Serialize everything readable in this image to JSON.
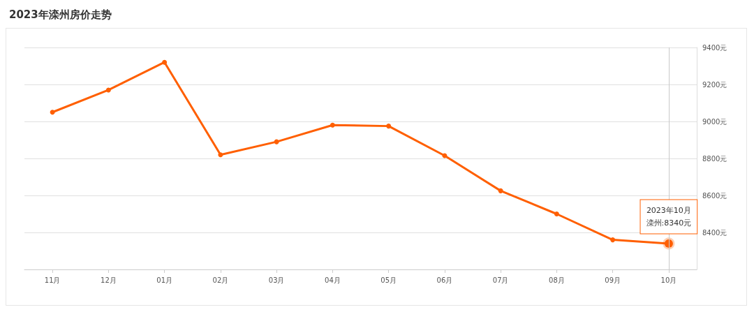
{
  "chart_data": {
    "type": "line",
    "title": "2023年滦州房价走势",
    "categories": [
      "11月",
      "12月",
      "01月",
      "02月",
      "03月",
      "04月",
      "05月",
      "06月",
      "07月",
      "08月",
      "09月",
      "10月"
    ],
    "values": [
      9050,
      9170,
      9320,
      8820,
      8890,
      8980,
      8975,
      8815,
      8625,
      8500,
      8360,
      8340
    ],
    "color": "#ff5f00",
    "ylim": [
      8200,
      9400
    ],
    "yticks": [
      {
        "value": 8200,
        "label": null
      },
      {
        "value": 8400,
        "label": "8400元"
      },
      {
        "value": 8600,
        "label": "8600元"
      },
      {
        "value": 8800,
        "label": "8800元"
      },
      {
        "value": 9000,
        "label": "9000元"
      },
      {
        "value": 9200,
        "label": "9200元"
      },
      {
        "value": 9400,
        "label": "9400元"
      }
    ],
    "grid": "y",
    "marker": "circle",
    "line_style": "solid",
    "ref_lines": [
      {
        "axis": "x",
        "value": "10月",
        "color": "#c8c8c8"
      }
    ],
    "annotations": [
      "2023年10月",
      {
        "text": "滦州:8340元",
        "x": "10月",
        "y": 8340
      }
    ]
  }
}
